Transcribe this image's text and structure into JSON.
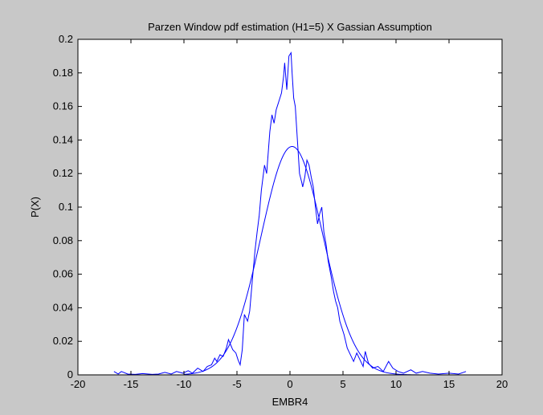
{
  "figure": {
    "background": "#c8c8c8",
    "axes_background": "#ffffff",
    "line_color": "#0000ff"
  },
  "chart_data": {
    "type": "line",
    "title": "Parzen Window pdf estimation (H1=5) X Gassian Assumption",
    "xlabel": "EMBR4",
    "ylabel": "P(X)",
    "xlim": [
      -20,
      20
    ],
    "ylim": [
      0,
      0.2
    ],
    "xticks": [
      -20,
      -15,
      -10,
      -5,
      0,
      5,
      10,
      15,
      20
    ],
    "xtick_labels": [
      "-20",
      "-15",
      "-10",
      "-5",
      "0",
      "5",
      "10",
      "15",
      "20"
    ],
    "yticks": [
      0,
      0.02,
      0.04,
      0.06,
      0.08,
      0.1,
      0.12,
      0.14,
      0.16,
      0.18,
      0.2
    ],
    "ytick_labels": [
      "0",
      "0.02",
      "0.04",
      "0.06",
      "0.08",
      "0.1",
      "0.12",
      "0.14",
      "0.16",
      "0.18",
      "0.2"
    ],
    "grid": false,
    "series": [
      {
        "kind": "parzen-estimate",
        "color": "#0000ff",
        "x": [
          -16.6,
          -16.2,
          -15.9,
          -15.3,
          -14.6,
          -13.9,
          -13.0,
          -12.4,
          -11.8,
          -11.2,
          -10.7,
          -10.1,
          -9.6,
          -9.2,
          -8.7,
          -8.2,
          -7.8,
          -7.4,
          -7.1,
          -6.9,
          -6.6,
          -6.3,
          -6.0,
          -5.8,
          -5.6,
          -5.4,
          -5.1,
          -4.9,
          -4.7,
          -4.5,
          -4.3,
          -4.0,
          -3.8,
          -3.5,
          -3.3,
          -3.1,
          -2.9,
          -2.7,
          -2.4,
          -2.2,
          -1.9,
          -1.7,
          -1.5,
          -1.3,
          -1.1,
          -0.8,
          -0.6,
          -0.5,
          -0.3,
          -0.1,
          0.1,
          0.2,
          0.35,
          0.5,
          0.7,
          0.9,
          1.1,
          1.2,
          1.4,
          1.6,
          1.8,
          2.0,
          2.2,
          2.4,
          2.6,
          2.8,
          3.0,
          3.2,
          3.4,
          3.6,
          3.9,
          4.1,
          4.3,
          4.5,
          4.7,
          4.9,
          5.1,
          5.4,
          5.7,
          6.0,
          6.3,
          6.6,
          6.9,
          7.1,
          7.4,
          7.8,
          8.3,
          8.8,
          9.3,
          9.7,
          10.2,
          10.7,
          11.4,
          11.9,
          12.5,
          13.2,
          14.0,
          15.0,
          15.9,
          16.6
        ],
        "y": [
          0.002,
          0.0005,
          0.002,
          0.0005,
          0.0003,
          0.0008,
          0.0003,
          0.0005,
          0.0015,
          0.0005,
          0.002,
          0.001,
          0.0025,
          0.001,
          0.004,
          0.002,
          0.005,
          0.006,
          0.01,
          0.008,
          0.012,
          0.011,
          0.016,
          0.021,
          0.018,
          0.015,
          0.013,
          0.009,
          0.006,
          0.015,
          0.036,
          0.032,
          0.038,
          0.06,
          0.074,
          0.085,
          0.095,
          0.11,
          0.125,
          0.12,
          0.145,
          0.155,
          0.15,
          0.158,
          0.162,
          0.168,
          0.178,
          0.186,
          0.17,
          0.19,
          0.192,
          0.18,
          0.165,
          0.16,
          0.14,
          0.12,
          0.115,
          0.112,
          0.118,
          0.128,
          0.125,
          0.118,
          0.112,
          0.1,
          0.09,
          0.096,
          0.1,
          0.085,
          0.078,
          0.068,
          0.058,
          0.05,
          0.044,
          0.04,
          0.032,
          0.028,
          0.024,
          0.016,
          0.012,
          0.008,
          0.013,
          0.009,
          0.005,
          0.014,
          0.007,
          0.004,
          0.005,
          0.002,
          0.008,
          0.004,
          0.002,
          0.001,
          0.003,
          0.001,
          0.002,
          0.001,
          0.0005,
          0.001,
          0.0005,
          0.002
        ]
      },
      {
        "kind": "gaussian-assumption",
        "color": "#0000ff",
        "mean": 0.2,
        "std": 2.93,
        "x_range": [
          -10,
          16
        ]
      }
    ]
  }
}
